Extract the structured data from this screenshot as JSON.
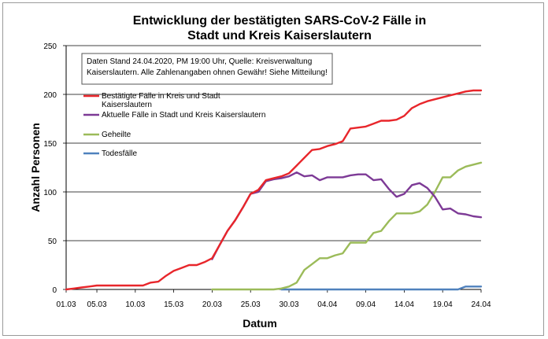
{
  "chart_data": {
    "type": "line",
    "title_line1": "Entwicklung der bestätigten SARS-CoV-2 Fälle in",
    "title_line2": "Stadt und Kreis Kaiserslautern",
    "xlabel": "Datum",
    "ylabel": "Anzahl Personen",
    "ylim": [
      0,
      250
    ],
    "yticks": [
      0,
      50,
      100,
      150,
      200,
      250
    ],
    "grid": "horizontal",
    "xtick_labels": [
      "01.03",
      "05.03",
      "10.03",
      "15.03",
      "20.03",
      "25.03",
      "30.03",
      "04.04",
      "09.04",
      "14.04",
      "19.04",
      "24.04"
    ],
    "xtick_days": [
      1,
      5,
      10,
      15,
      20,
      25,
      30,
      35,
      40,
      45,
      50,
      55
    ],
    "xlim_days": [
      1,
      55
    ],
    "note_line1": "Daten Stand 24.04.2020, PM 19:00 Uhr, Quelle: Kreisverwaltung",
    "note_line2": "Kaiserslautern. Alle Zahlenangaben ohnen Gewähr! Siehe Mitteilung!",
    "legend_position": "upper-left",
    "series": [
      {
        "name_line1": "Bestätigte Fälle in Kreis und Stadt",
        "name_line2": "Kaiserslautern",
        "color": "#e8262b",
        "x": [
          1,
          2,
          3,
          4,
          5,
          6,
          7,
          8,
          9,
          10,
          11,
          12,
          13,
          14,
          15,
          16,
          17,
          18,
          19,
          20,
          21,
          22,
          23,
          24,
          25,
          26,
          27,
          28,
          29,
          30,
          31,
          32,
          33,
          34,
          35,
          36,
          37,
          38,
          39,
          40,
          41,
          42,
          43,
          44,
          45,
          46,
          47,
          48,
          49,
          50,
          51,
          52,
          53,
          54,
          55
        ],
        "y": [
          0,
          1,
          2,
          3,
          4,
          4,
          4,
          4,
          4,
          4,
          4,
          7,
          8,
          14,
          19,
          22,
          25,
          25,
          28,
          32,
          46,
          60,
          71,
          84,
          98,
          102,
          112,
          114,
          116,
          119,
          127,
          135,
          143,
          144,
          147,
          149,
          152,
          165,
          166,
          167,
          170,
          173,
          173,
          174,
          178,
          186,
          190,
          193,
          195,
          197,
          199,
          201,
          203,
          204,
          204
        ]
      },
      {
        "name_line1": "Aktuelle Fälle in Stadt und Kreis Kaiserslautern",
        "name_line2": "",
        "color": "#7d3a96",
        "x": [
          20,
          21,
          22,
          23,
          24,
          25,
          26,
          27,
          28,
          29,
          30,
          31,
          32,
          33,
          34,
          35,
          36,
          37,
          38,
          39,
          40,
          41,
          42,
          43,
          44,
          45,
          46,
          47,
          48,
          49,
          50,
          51,
          52,
          53,
          54,
          55
        ],
        "y": [
          31,
          46,
          60,
          71,
          84,
          98,
          100,
          111,
          113,
          114,
          116,
          120,
          116,
          117,
          112,
          115,
          115,
          115,
          117,
          118,
          118,
          112,
          113,
          103,
          95,
          98,
          107,
          109,
          104,
          95,
          82,
          83,
          78,
          77,
          75,
          74
        ]
      },
      {
        "name_line1": "Geheilte",
        "name_line2": "",
        "color": "#9bbb59",
        "x": [
          20,
          21,
          22,
          23,
          24,
          25,
          26,
          27,
          28,
          29,
          30,
          31,
          32,
          33,
          34,
          35,
          36,
          37,
          38,
          39,
          40,
          41,
          42,
          43,
          44,
          45,
          46,
          47,
          48,
          49,
          50,
          51,
          52,
          53,
          54,
          55
        ],
        "y": [
          0,
          0,
          0,
          0,
          0,
          0,
          0,
          0,
          0,
          1,
          3,
          7,
          20,
          26,
          32,
          32,
          35,
          37,
          48,
          48,
          48,
          58,
          60,
          70,
          78,
          78,
          78,
          80,
          87,
          100,
          115,
          115,
          122,
          126,
          128,
          130
        ]
      },
      {
        "name_line1": "Todesfälle",
        "name_line2": "",
        "color": "#4f81bd",
        "x": [
          29,
          30,
          31,
          32,
          33,
          34,
          35,
          36,
          37,
          38,
          39,
          40,
          41,
          42,
          43,
          44,
          45,
          46,
          47,
          48,
          49,
          50,
          51,
          52,
          53,
          54,
          55
        ],
        "y": [
          0,
          0,
          0,
          0,
          0,
          0,
          0,
          0,
          0,
          0,
          0,
          0,
          0,
          0,
          0,
          0,
          0,
          0,
          0,
          0,
          0,
          0,
          0,
          0,
          3,
          3,
          3
        ]
      }
    ]
  }
}
